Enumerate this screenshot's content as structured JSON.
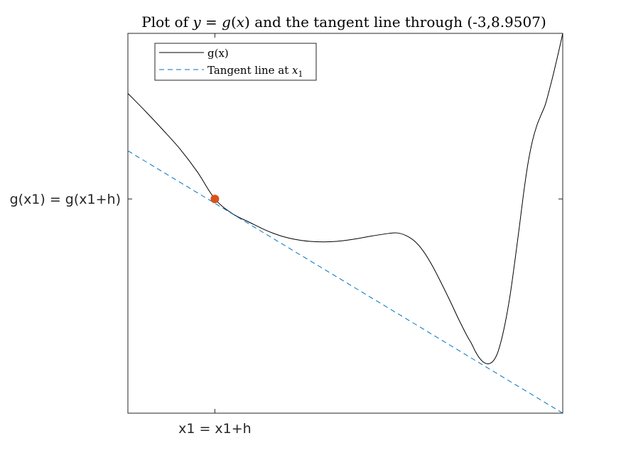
{
  "chart_data": {
    "type": "line",
    "title": "Plot of y = g(x) and the tangent line through (-3,8.9507)",
    "xlabel": "",
    "ylabel": "",
    "xlim": [
      -4,
      1
    ],
    "ylim": [
      4.1,
      12.7
    ],
    "grid": false,
    "legend_position": "top-left",
    "x_ticks": [
      {
        "value": -3,
        "label": "x1 = x1+h"
      }
    ],
    "y_ticks": [
      {
        "value": 8.9507,
        "label": "g(x1) = g(x1+h)"
      }
    ],
    "series": [
      {
        "name": "g(x)",
        "legend_label": "g(x)",
        "color": "#000000",
        "style": "solid",
        "x": [
          -4,
          -3.8,
          -3.6,
          -3.4,
          -3.2,
          -3,
          -2.8,
          -2.6,
          -2.4,
          -2.2,
          -2,
          -1.8,
          -1.6,
          -1.4,
          -1.2,
          -1.0,
          -0.9,
          -0.8,
          -0.7,
          -0.6,
          -0.5,
          -0.4,
          -0.3,
          -0.2,
          -0.1,
          -0.05,
          0.0,
          0.05,
          0.1,
          0.15,
          0.2,
          0.25,
          0.3,
          0.35,
          0.4,
          0.45,
          0.5,
          0.55,
          0.6,
          0.65,
          0.7,
          0.75,
          0.8,
          0.85,
          0.9,
          0.95,
          1.0
        ],
        "y": [
          11.34,
          10.94,
          10.52,
          10.08,
          9.56,
          8.9507,
          8.62,
          8.42,
          8.23,
          8.09,
          8.01,
          7.98,
          7.99,
          8.04,
          8.11,
          8.17,
          8.18,
          8.12,
          7.99,
          7.76,
          7.44,
          7.06,
          6.66,
          6.24,
          5.85,
          5.68,
          5.48,
          5.33,
          5.24,
          5.22,
          5.28,
          5.46,
          5.8,
          6.26,
          6.84,
          7.55,
          8.3,
          9.08,
          9.75,
          10.25,
          10.6,
          10.85,
          11.09,
          11.45,
          11.84,
          12.26,
          12.7
        ]
      },
      {
        "name": "Tangent line at x1",
        "legend_label": "Tangent line at",
        "legend_math": "x1",
        "color": "#0072BD",
        "style": "dashed",
        "x": [
          -4,
          1
        ],
        "y": [
          10.04,
          4.1
        ]
      }
    ],
    "markers": [
      {
        "x": -3,
        "y": 8.9507,
        "color": "#D95319"
      }
    ]
  }
}
